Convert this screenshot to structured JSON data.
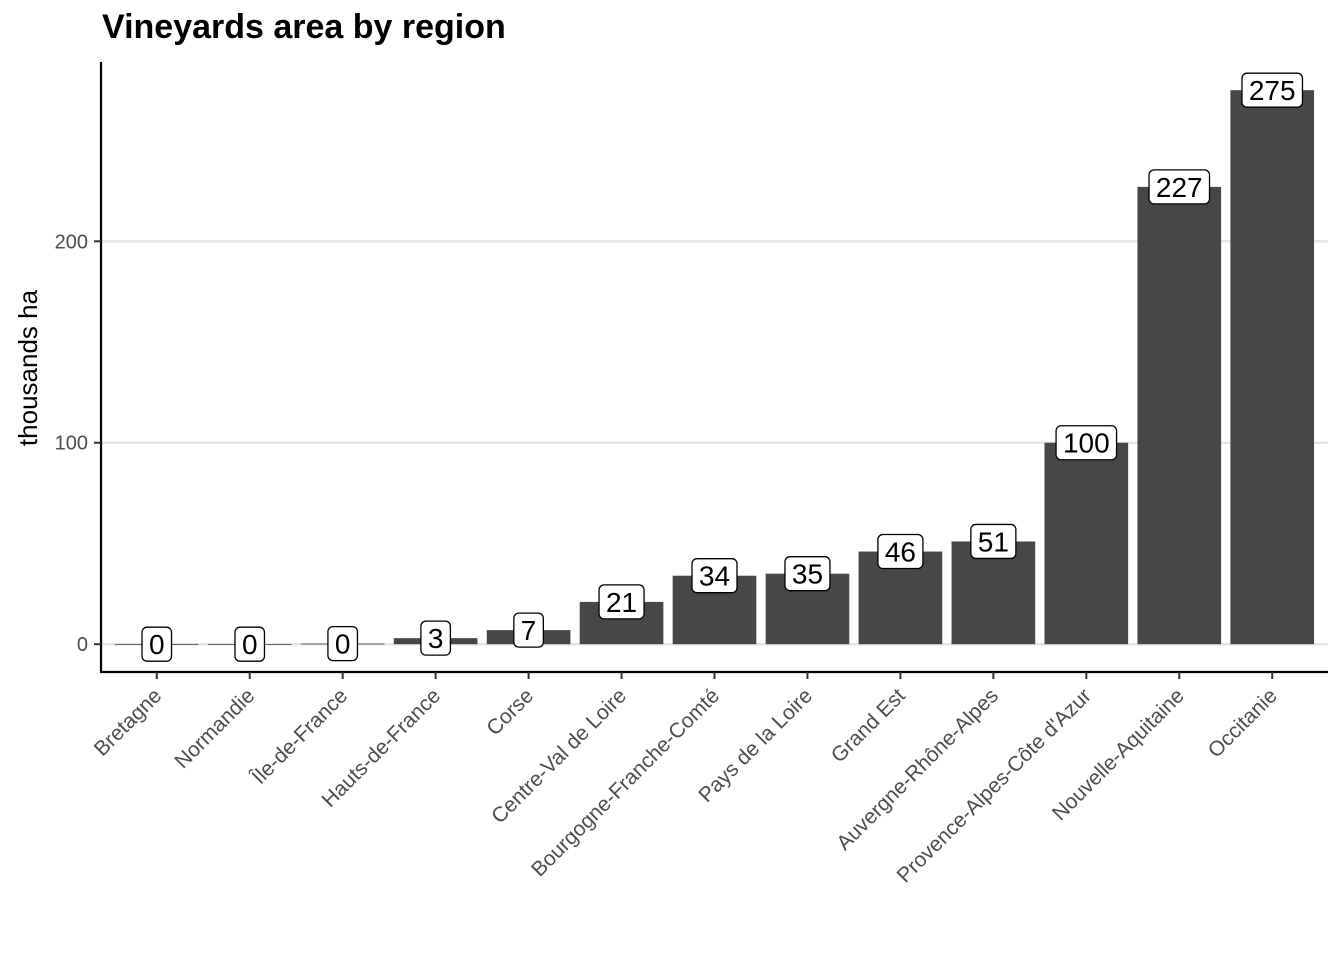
{
  "chart_data": {
    "type": "bar",
    "title": "Vineyards area by region",
    "xlabel": "",
    "ylabel": "thousands ha",
    "categories": [
      "Bretagne",
      "Normandie",
      "Île-de-France",
      "Hauts-de-France",
      "Corse",
      "Centre-Val de Loire",
      "Bourgogne-Franche-Comté",
      "Pays de la Loire",
      "Grand Est",
      "Auvergne-Rhône-Alpes",
      "Provence-Alpes-Côte d'Azur",
      "Nouvelle-Aquitaine",
      "Occitanie"
    ],
    "values": [
      0,
      0,
      0.3,
      3,
      7,
      21,
      34,
      35,
      46,
      51,
      100,
      227,
      275
    ],
    "data_labels": [
      "0",
      "0",
      "0",
      "3",
      "7",
      "21",
      "34",
      "35",
      "46",
      "51",
      "100",
      "227",
      "275"
    ],
    "yticks": [
      0,
      100,
      200
    ],
    "ylim": [
      -13.8,
      289
    ],
    "grid": "horizontal major",
    "legend": "none",
    "colors": {
      "bar": "#474747",
      "grid": "#e5e5e5",
      "axis": "#000000",
      "tick_label": "#4d4d4d"
    }
  }
}
